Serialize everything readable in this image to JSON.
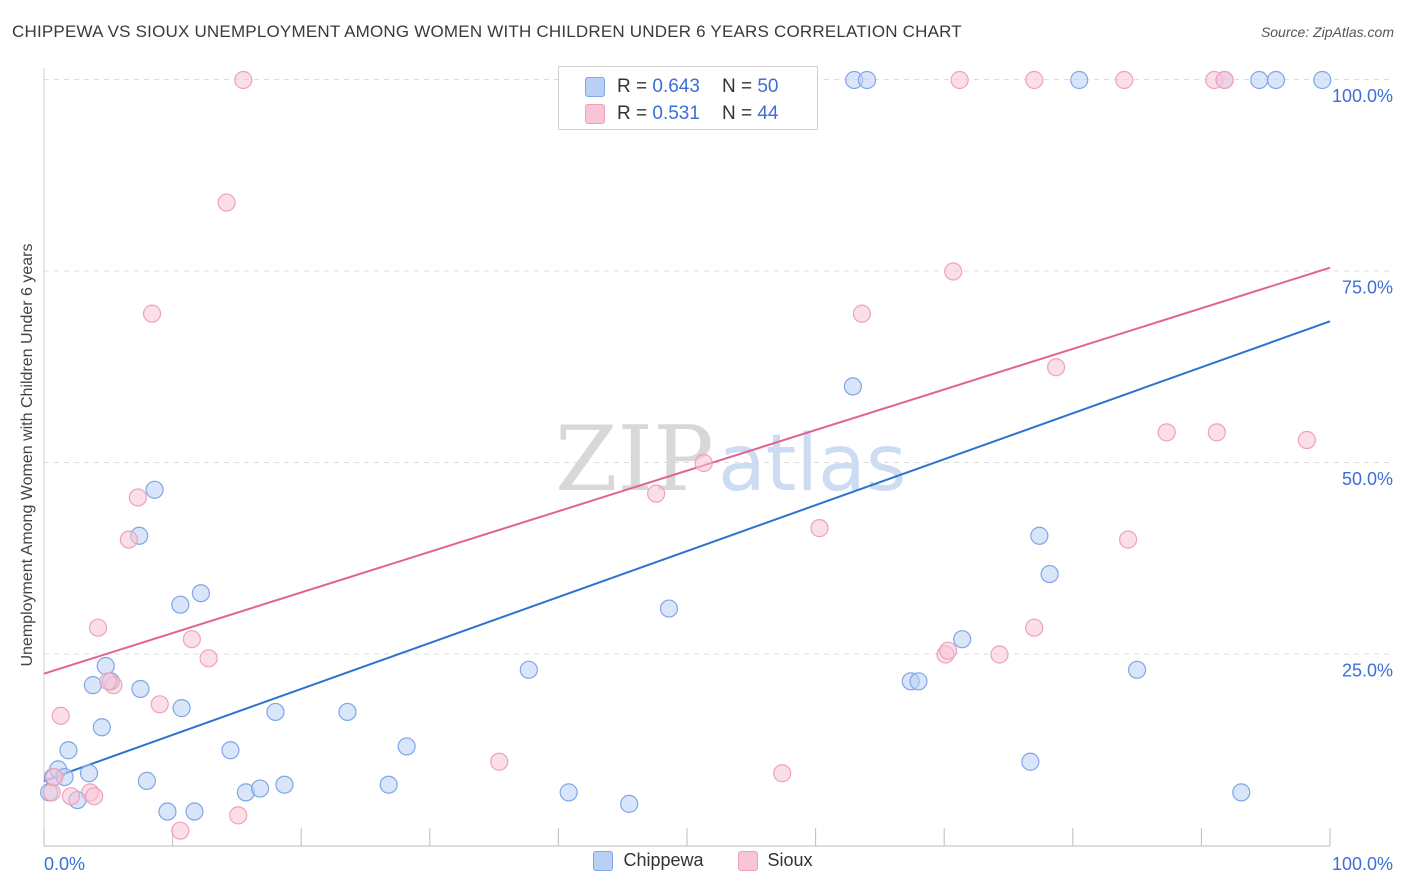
{
  "title": "CHIPPEWA VS SIOUX UNEMPLOYMENT AMONG WOMEN WITH CHILDREN UNDER 6 YEARS CORRELATION CHART",
  "source": "Source: ZipAtlas.com",
  "watermark": {
    "zip": "ZIP",
    "atlas": "atlas"
  },
  "legend": {
    "rows": [
      {
        "r_label": "R =",
        "r_value": "0.643",
        "n_label": "N =",
        "n_value": "50"
      },
      {
        "r_label": "R =",
        "r_value": "0.531",
        "n_label": "N =",
        "n_value": "44"
      }
    ]
  },
  "chart_data": {
    "type": "scatter",
    "title": "CHIPPEWA VS SIOUX UNEMPLOYMENT AMONG WOMEN WITH CHILDREN UNDER 6 YEARS CORRELATION CHART",
    "xlabel": "",
    "ylabel": "Unemployment Among Women with Children Under 6 years",
    "xlim": [
      0,
      100
    ],
    "ylim": [
      0,
      100
    ],
    "x_tick_labels": [
      "0.0%",
      "100.0%"
    ],
    "y_tick_labels": [
      "25.0%",
      "50.0%",
      "75.0%",
      "100.0%"
    ],
    "y_ticks": [
      25,
      50,
      75,
      100
    ],
    "grid": true,
    "legend_position": "top-center",
    "series": [
      {
        "name": "Chippewa",
        "color": "#7fa6e8",
        "fill": "#b9cff3",
        "line_color": "#2f72d0",
        "r": 0.643,
        "n": 50,
        "trend": {
          "x": [
            0,
            100
          ],
          "y": [
            8.5,
            68.5
          ]
        },
        "points": [
          [
            0.4,
            7.0
          ],
          [
            0.7,
            9.0
          ],
          [
            1.1,
            10.0
          ],
          [
            1.6,
            9.0
          ],
          [
            1.9,
            12.5
          ],
          [
            2.6,
            6.0
          ],
          [
            3.5,
            9.5
          ],
          [
            3.8,
            21.0
          ],
          [
            4.5,
            15.5
          ],
          [
            4.8,
            23.5
          ],
          [
            5.2,
            21.5
          ],
          [
            7.4,
            40.5
          ],
          [
            7.5,
            20.5
          ],
          [
            8.0,
            8.5
          ],
          [
            8.6,
            46.5
          ],
          [
            9.6,
            4.5
          ],
          [
            10.6,
            31.5
          ],
          [
            10.7,
            18.0
          ],
          [
            11.7,
            4.5
          ],
          [
            12.2,
            33.0
          ],
          [
            14.5,
            12.5
          ],
          [
            15.7,
            7.0
          ],
          [
            16.8,
            7.5
          ],
          [
            18.0,
            17.5
          ],
          [
            18.7,
            8.0
          ],
          [
            23.6,
            17.5
          ],
          [
            26.8,
            8.0
          ],
          [
            28.2,
            13.0
          ],
          [
            37.7,
            23.0
          ],
          [
            40.8,
            7.0
          ],
          [
            45.5,
            5.5
          ],
          [
            48.6,
            31.0
          ],
          [
            62.9,
            60.0
          ],
          [
            67.4,
            21.5
          ],
          [
            68.0,
            21.5
          ],
          [
            71.4,
            27.0
          ],
          [
            76.7,
            11.0
          ],
          [
            77.4,
            40.5
          ],
          [
            78.2,
            35.5
          ],
          [
            85.0,
            23.0
          ],
          [
            93.1,
            7.0
          ]
        ],
        "top_points": [
          63.0,
          64.0,
          80.5,
          91.8,
          94.5,
          95.8,
          99.4
        ]
      },
      {
        "name": "Sioux",
        "color": "#f0a0bb",
        "fill": "#f8c5d6",
        "line_color": "#e0648f",
        "r": 0.531,
        "n": 44,
        "trend": {
          "x": [
            0,
            100
          ],
          "y": [
            22.5,
            75.5
          ]
        },
        "points": [
          [
            0.6,
            7.0
          ],
          [
            0.8,
            9.0
          ],
          [
            1.3,
            17.0
          ],
          [
            2.1,
            6.5
          ],
          [
            3.6,
            7.0
          ],
          [
            4.2,
            28.5
          ],
          [
            3.9,
            6.5
          ],
          [
            5.4,
            21.0
          ],
          [
            5.0,
            21.5
          ],
          [
            6.6,
            40.0
          ],
          [
            7.3,
            45.5
          ],
          [
            8.4,
            69.5
          ],
          [
            9.0,
            18.5
          ],
          [
            10.6,
            2.0
          ],
          [
            11.5,
            27.0
          ],
          [
            12.8,
            24.5
          ],
          [
            14.2,
            84.0
          ],
          [
            15.1,
            4.0
          ],
          [
            35.4,
            11.0
          ],
          [
            47.6,
            46.0
          ],
          [
            51.3,
            50.0
          ],
          [
            57.4,
            9.5
          ],
          [
            60.3,
            41.5
          ],
          [
            63.6,
            69.5
          ],
          [
            70.1,
            25.0
          ],
          [
            70.3,
            25.5
          ],
          [
            70.7,
            75.0
          ],
          [
            74.3,
            25.0
          ],
          [
            77.0,
            28.5
          ],
          [
            78.7,
            62.5
          ],
          [
            84.3,
            40.0
          ],
          [
            87.3,
            54.0
          ],
          [
            91.2,
            54.0
          ],
          [
            98.2,
            53.0
          ]
        ],
        "top_points": [
          15.5,
          71.2,
          77.0,
          84.0,
          91.0,
          91.8
        ]
      }
    ]
  },
  "bottom_legend": {
    "items": [
      "Chippewa",
      "Sioux"
    ]
  }
}
